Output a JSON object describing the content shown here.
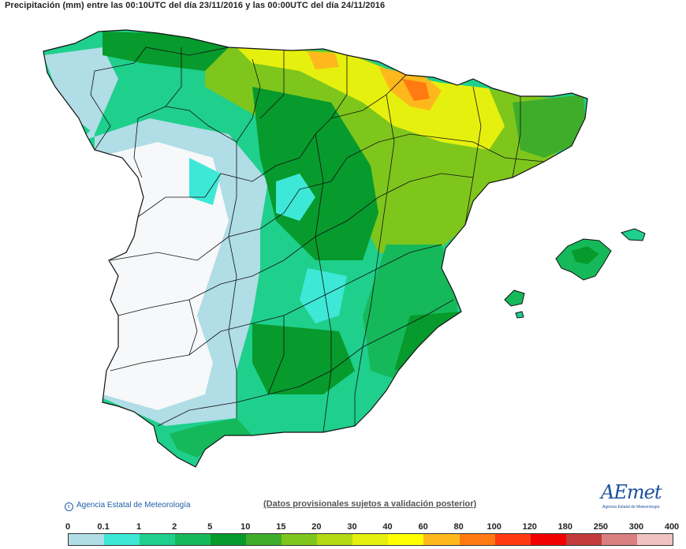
{
  "header": {
    "title": "Precipitación (mm) entre las 00:10UTC del día 23/11/2016 y las 00:00UTC del día 24/11/2016"
  },
  "footer": {
    "credit": "Agencia Estatal de Meteorología",
    "note": "(Datos provisionales sujetos a validación posterior)",
    "logo_word": "AEmet",
    "logo_sub": "Agencia Estatal de Meteorología"
  },
  "legend": {
    "ticks": [
      "0",
      "0.1",
      "1",
      "2",
      "5",
      "10",
      "15",
      "20",
      "30",
      "40",
      "60",
      "80",
      "100",
      "120",
      "180",
      "250",
      "300",
      "400"
    ],
    "colors": [
      "#ffffff",
      "#b0dde6",
      "#3de8d6",
      "#1fcf8c",
      "#16b95a",
      "#079a2c",
      "#3fad2a",
      "#7fc61c",
      "#b3d914",
      "#e6f00e",
      "#ffff00",
      "#ffb81c",
      "#ff7b12",
      "#ff3a10",
      "#f20000",
      "#c23a3a",
      "#d98080",
      "#f1c2c2"
    ]
  },
  "colors": {
    "border": "#111111",
    "sea": "#ffffff"
  }
}
